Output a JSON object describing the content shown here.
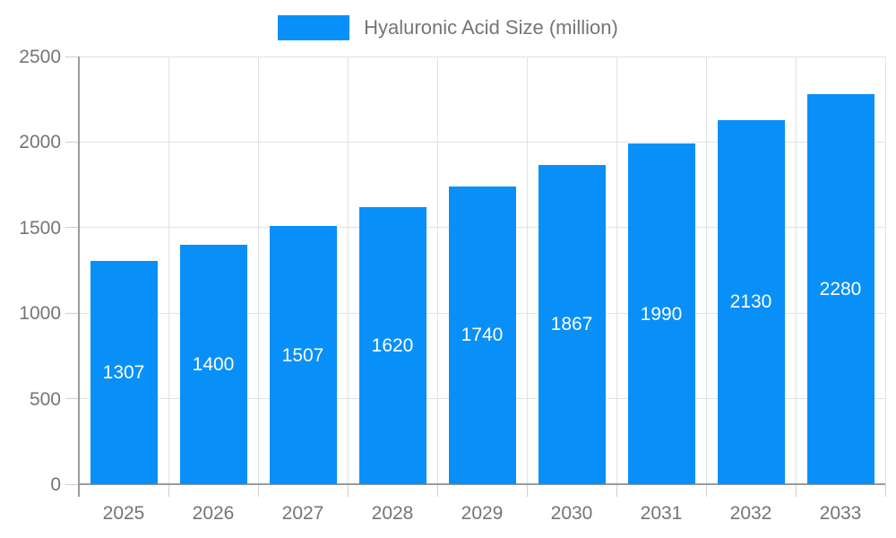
{
  "chart_data": {
    "type": "bar",
    "categories": [
      "2025",
      "2026",
      "2027",
      "2028",
      "2029",
      "2030",
      "2031",
      "2032",
      "2033"
    ],
    "values": [
      1307,
      1400,
      1507,
      1620,
      1740,
      1867,
      1990,
      2130,
      2280
    ],
    "series_name": "Hyaluronic Acid Size (million)",
    "title": "",
    "xlabel": "",
    "ylabel": "",
    "ylim": [
      0,
      2500
    ],
    "yticks": [
      0,
      500,
      1000,
      1500,
      2000,
      2500
    ],
    "grid": true,
    "legend_position": "top",
    "bar_color": "#0890f8",
    "bar_label_color": "#ffffff",
    "axis_text_color": "#757575",
    "grid_color": "#e2e2e2",
    "axis_line_color": "#9a9a9a"
  },
  "legend": {
    "label": "Hyaluronic Acid Size (million)"
  }
}
